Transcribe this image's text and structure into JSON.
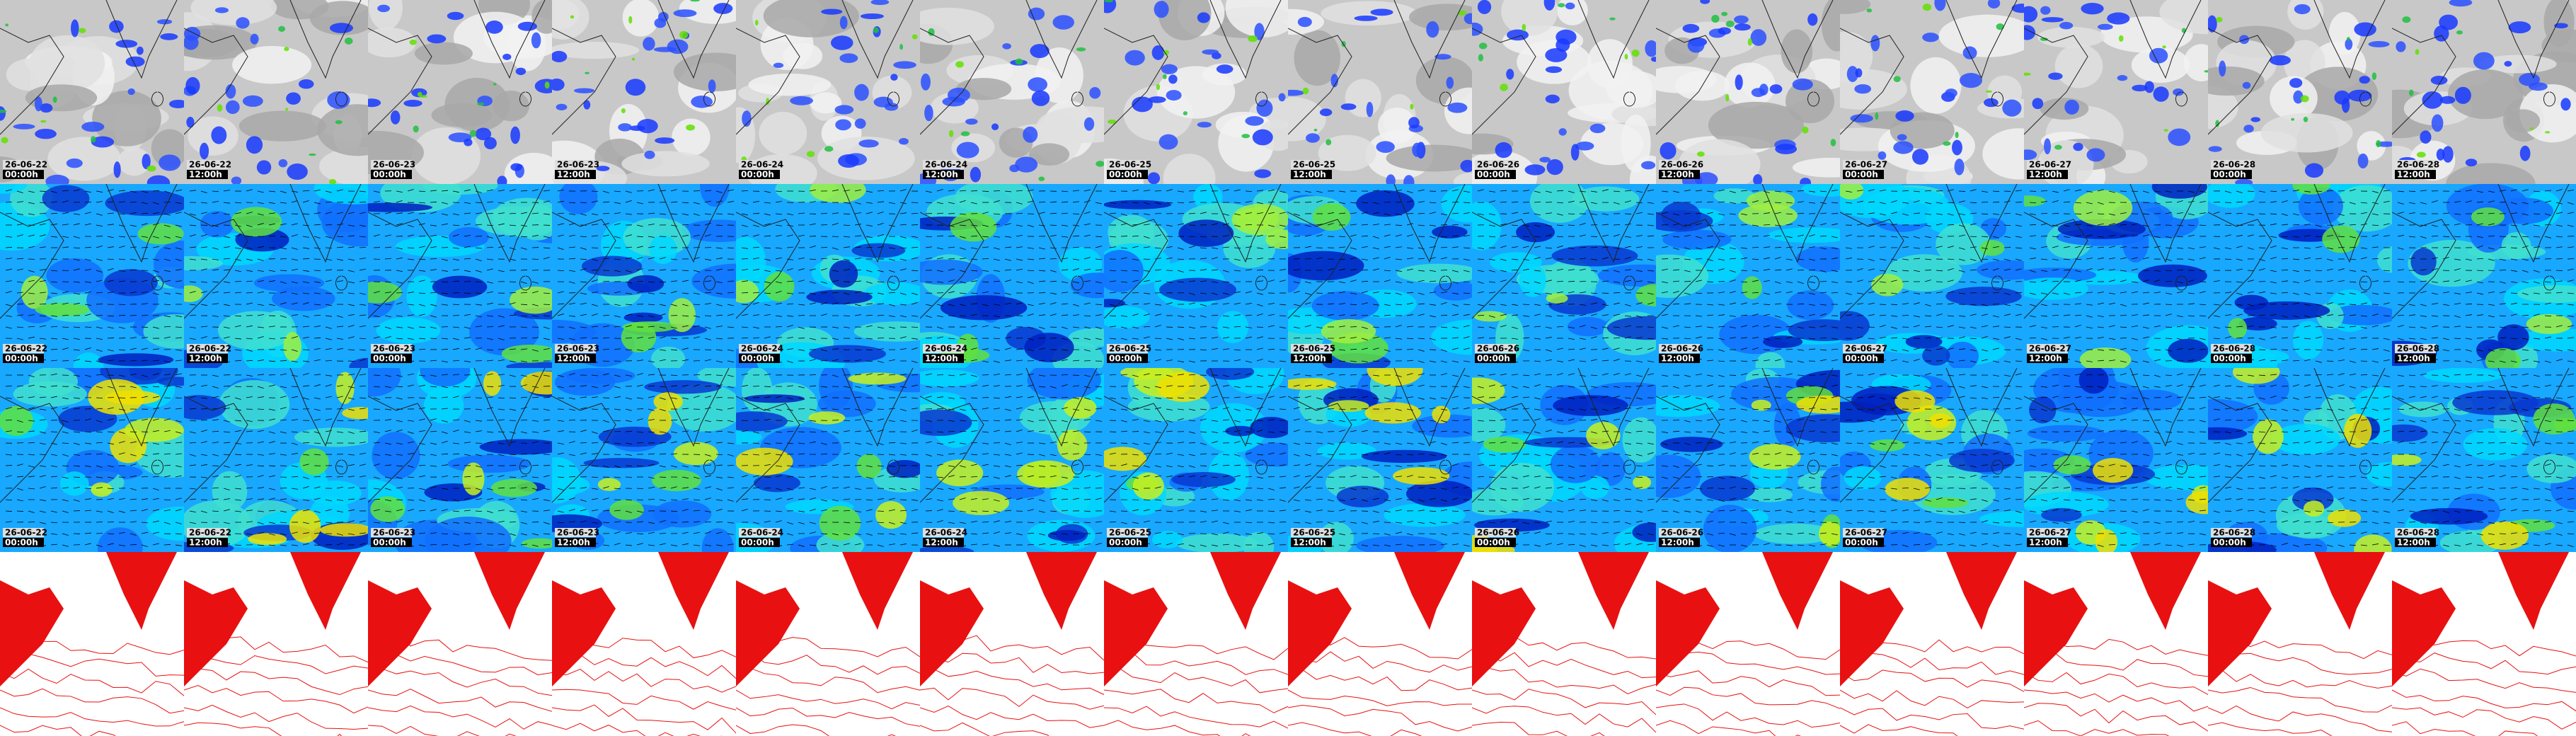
{
  "panels": [
    {
      "date": "26-06-22",
      "time": "00:00h"
    },
    {
      "date": "26-06-22",
      "time": "12:00h"
    },
    {
      "date": "26-06-23",
      "time": "00:00h"
    },
    {
      "date": "26-06-23",
      "time": "12:00h"
    },
    {
      "date": "26-06-24",
      "time": "00:00h"
    },
    {
      "date": "26-06-24",
      "time": "12:00h"
    },
    {
      "date": "26-06-25",
      "time": "00:00h"
    },
    {
      "date": "26-06-25",
      "time": "12:00h"
    },
    {
      "date": "26-06-26",
      "time": "00:00h"
    },
    {
      "date": "26-06-26",
      "time": "12:00h"
    },
    {
      "date": "26-06-27",
      "time": "00:00h"
    },
    {
      "date": "26-06-27",
      "time": "12:00h"
    },
    {
      "date": "26-06-28",
      "time": "00:00h"
    },
    {
      "date": "26-06-28",
      "time": "12:00h"
    }
  ]
}
